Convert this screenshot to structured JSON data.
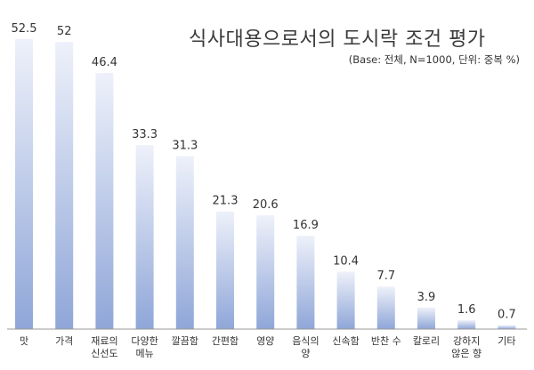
{
  "chart_data": {
    "type": "bar",
    "title": "식사대용으로서의 도시락 조건 평가",
    "subtitle": "(Base: 전체, N=1000, 단위: 중복 %)",
    "categories": [
      [
        "맛"
      ],
      [
        "가격"
      ],
      [
        "재료의",
        "신선도"
      ],
      [
        "다양한",
        "메뉴"
      ],
      [
        "깔끔함"
      ],
      [
        "간편함"
      ],
      [
        "영양"
      ],
      [
        "음식의",
        "양"
      ],
      [
        "신속함"
      ],
      [
        "반찬 수"
      ],
      [
        "칼로리"
      ],
      [
        "강하지",
        "않은 향"
      ],
      [
        "기타"
      ]
    ],
    "values": [
      52.5,
      52,
      46.4,
      33.3,
      31.3,
      21.3,
      20.6,
      16.9,
      10.4,
      7.7,
      3.9,
      1.6,
      0.7
    ],
    "value_labels": [
      "52.5",
      "52",
      "46.4",
      "33.3",
      "31.3",
      "21.3",
      "20.6",
      "16.9",
      "10.4",
      "7.7",
      "3.9",
      "1.6",
      "0.7"
    ],
    "ylim": [
      0,
      52.5
    ],
    "grid": false,
    "colors": {
      "bar_top": "#eef1fa",
      "bar_bottom": "#8fa6d8",
      "axis": "#999999"
    }
  }
}
